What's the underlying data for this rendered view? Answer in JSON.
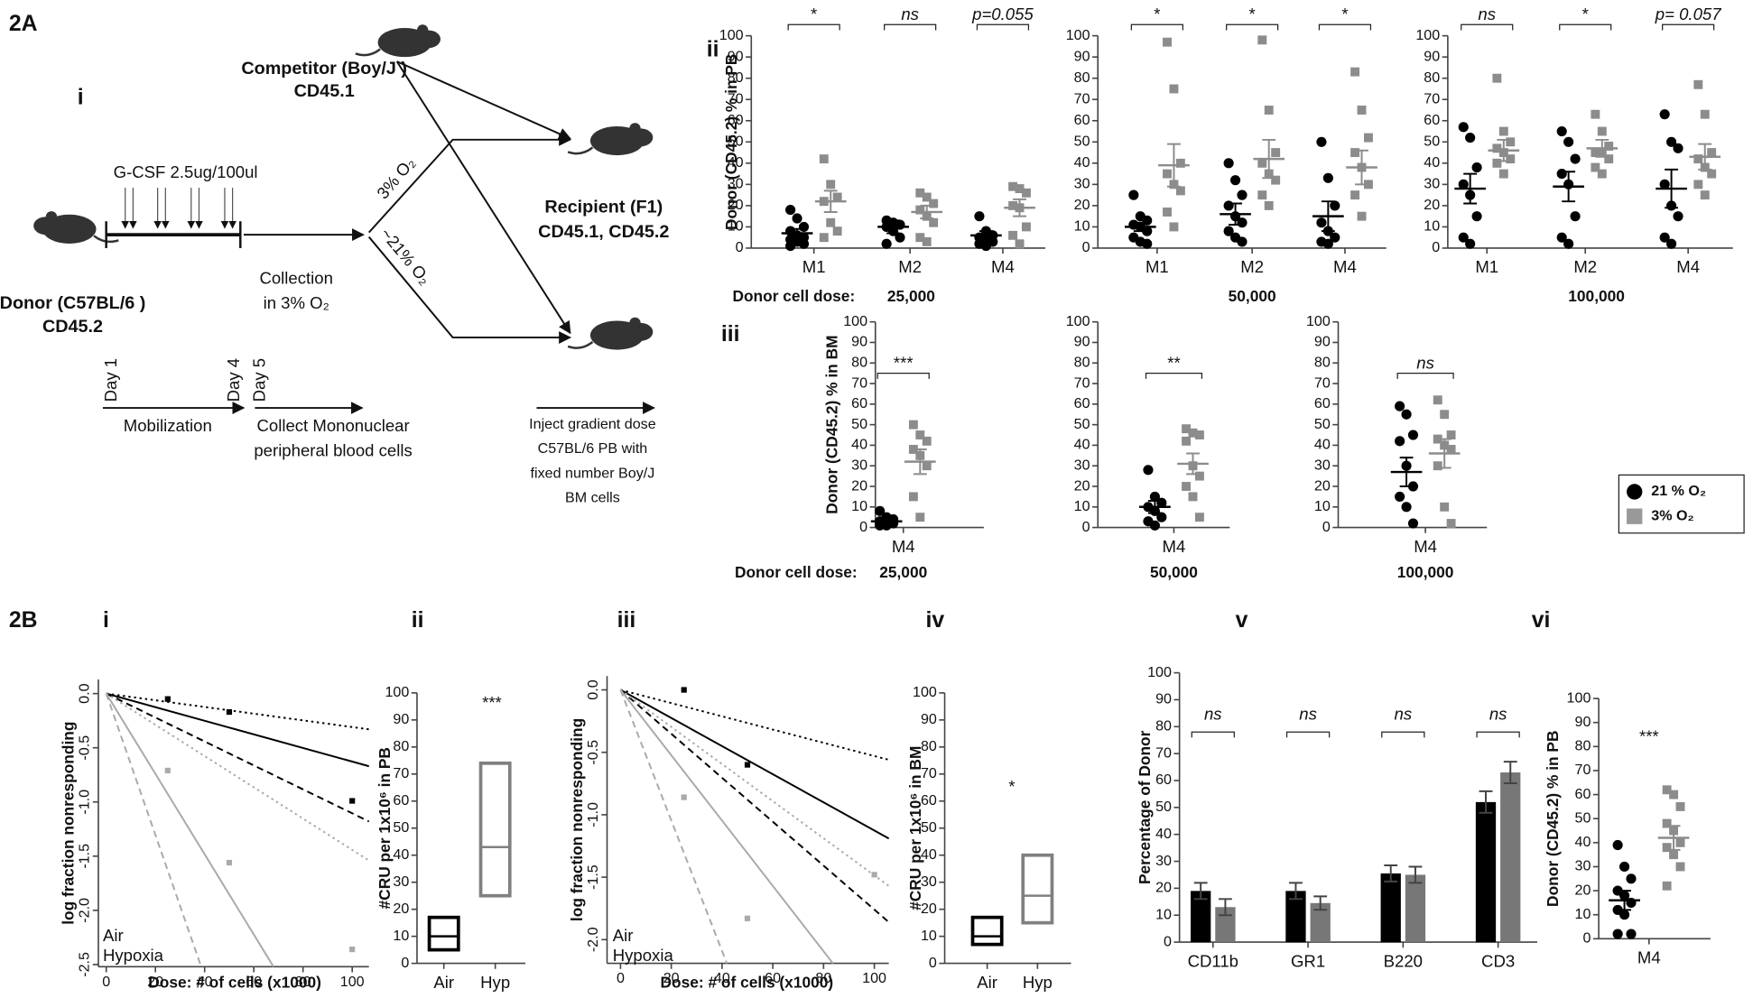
{
  "labels": {
    "a": "2A",
    "b": "2B"
  },
  "diagram": {
    "panel": "i",
    "competitor": [
      "Competitor (Boy/J )",
      "CD45.1"
    ],
    "donor": [
      "Donor (C57BL/6 )",
      "CD45.2"
    ],
    "recipient": [
      "Recipient (F1)",
      "CD45.1, CD45.2"
    ],
    "gcsf": "G-CSF 2.5ug/100ul",
    "collection": [
      "Collection",
      "in 3% O₂"
    ],
    "hypoxia_arm": "3% O₂",
    "air_arm": "~21% O₂",
    "days": [
      "Day 1",
      "Day 4",
      "Day 5"
    ],
    "mobilization": "Mobilization",
    "collect": [
      "Collect  Mononuclear",
      "peripheral blood cells"
    ],
    "inject": [
      "Inject gradient dose",
      "C57BL/6 PB with",
      "fixed number Boy/J",
      "BM cells"
    ]
  },
  "legend": [
    {
      "label": "21 % O₂",
      "color": "#000000",
      "marker": "circle"
    },
    {
      "label": "3% O₂",
      "color": "#999999",
      "marker": "square"
    }
  ],
  "chart_data": [
    {
      "type": "dotplot",
      "panel": "ii",
      "ylabel": "Donor (CD45.2) % in PB",
      "dose_label": "Donor cell dose:",
      "dose": "25,000",
      "categories": [
        "M1",
        "M2",
        "M4"
      ],
      "ylim": [
        0,
        100
      ],
      "yticks": [
        0,
        10,
        20,
        30,
        40,
        50,
        60,
        70,
        80,
        90,
        100
      ],
      "series": [
        {
          "color": "#000000",
          "marker": "circle",
          "values": [
            [
              18,
              14,
              10,
              8,
              6,
              5,
              4,
              3,
              2,
              1
            ],
            [
              13,
              12,
              11,
              10,
              8,
              5,
              2
            ],
            [
              15,
              8,
              6,
              5,
              4,
              3,
              2,
              1
            ]
          ],
          "mean": [
            7,
            10,
            6
          ],
          "sem": [
            2,
            3,
            2
          ]
        },
        {
          "color": "#8c8c8c",
          "marker": "square",
          "values": [
            [
              42,
              30,
              24,
              22,
              12,
              8,
              5
            ],
            [
              26,
              24,
              21,
              18,
              15,
              12,
              5,
              3
            ],
            [
              29,
              28,
              26,
              20,
              19,
              10,
              6,
              2
            ]
          ],
          "mean": [
            22,
            17,
            19
          ],
          "sem": [
            5,
            3,
            4
          ]
        }
      ],
      "annotations": [
        "*",
        "ns",
        "p=0.055"
      ]
    },
    {
      "type": "dotplot",
      "dose": "50,000",
      "categories": [
        "M1",
        "M2",
        "M4"
      ],
      "ylim": [
        0,
        100
      ],
      "yticks": [
        0,
        10,
        20,
        30,
        40,
        50,
        60,
        70,
        80,
        90,
        100
      ],
      "series": [
        {
          "color": "#000000",
          "marker": "circle",
          "values": [
            [
              25,
              15,
              13,
              11,
              10,
              8,
              5,
              3,
              2
            ],
            [
              40,
              32,
              25,
              20,
              15,
              12,
              8,
              5,
              3
            ],
            [
              50,
              33,
              20,
              12,
              8,
              5,
              3,
              2
            ]
          ],
          "mean": [
            10,
            16,
            15
          ],
          "sem": [
            2,
            5,
            7
          ]
        },
        {
          "color": "#8c8c8c",
          "marker": "square",
          "values": [
            [
              97,
              75,
              40,
              35,
              30,
              27,
              17,
              10
            ],
            [
              98,
              65,
              45,
              40,
              35,
              32,
              25,
              20
            ],
            [
              83,
              65,
              52,
              45,
              38,
              30,
              25,
              15
            ]
          ],
          "mean": [
            39,
            42,
            38
          ],
          "sem": [
            10,
            9,
            8
          ]
        }
      ],
      "annotations": [
        "*",
        "*",
        "*"
      ]
    },
    {
      "type": "dotplot",
      "dose": "100,000",
      "categories": [
        "M1",
        "M2",
        "M4"
      ],
      "ylim": [
        0,
        100
      ],
      "yticks": [
        0,
        10,
        20,
        30,
        40,
        50,
        60,
        70,
        80,
        90,
        100
      ],
      "series": [
        {
          "color": "#000000",
          "marker": "circle",
          "values": [
            [
              57,
              52,
              38,
              30,
              25,
              15,
              5,
              2
            ],
            [
              55,
              50,
              42,
              35,
              30,
              15,
              5,
              2
            ],
            [
              63,
              50,
              47,
              30,
              20,
              15,
              5,
              2
            ]
          ],
          "mean": [
            28,
            29,
            28
          ],
          "sem": [
            7,
            7,
            9
          ]
        },
        {
          "color": "#8c8c8c",
          "marker": "square",
          "values": [
            [
              80,
              55,
              50,
              47,
              45,
              42,
              40,
              35
            ],
            [
              63,
              55,
              48,
              45,
              45,
              42,
              38,
              35
            ],
            [
              77,
              63,
              45,
              42,
              38,
              35,
              30,
              25
            ]
          ],
          "mean": [
            46,
            47,
            43
          ],
          "sem": [
            5,
            4,
            6
          ]
        }
      ],
      "annotations": [
        "ns",
        "*",
        "p= 0.057"
      ]
    },
    {
      "type": "dotplot",
      "panel": "iii",
      "ylabel": "Donor (CD45.2) % in BM",
      "dose_label": "Donor cell dose:",
      "dose": "25,000",
      "categories": [
        "M4"
      ],
      "ylim": [
        0,
        100
      ],
      "yticks": [
        0,
        10,
        20,
        30,
        40,
        50,
        60,
        70,
        80,
        90,
        100
      ],
      "series": [
        {
          "color": "#000000",
          "marker": "circle",
          "values": [
            [
              8,
              5,
              4,
              3,
              2,
              2,
              1,
              1
            ]
          ],
          "mean": [
            3
          ],
          "sem": [
            1
          ]
        },
        {
          "color": "#8c8c8c",
          "marker": "square",
          "values": [
            [
              50,
              45,
              42,
              38,
              35,
              30,
              15,
              5
            ]
          ],
          "mean": [
            32
          ],
          "sem": [
            6
          ]
        }
      ],
      "annotations": [
        "***"
      ]
    },
    {
      "type": "dotplot",
      "dose": "50,000",
      "categories": [
        "M4"
      ],
      "ylim": [
        0,
        100
      ],
      "yticks": [
        0,
        10,
        20,
        30,
        40,
        50,
        60,
        70,
        80,
        90,
        100
      ],
      "series": [
        {
          "color": "#000000",
          "marker": "circle",
          "values": [
            [
              28,
              15,
              12,
              10,
              8,
              5,
              3,
              1
            ]
          ],
          "mean": [
            10
          ],
          "sem": [
            3
          ]
        },
        {
          "color": "#8c8c8c",
          "marker": "square",
          "values": [
            [
              48,
              46,
              45,
              42,
              30,
              25,
              20,
              15,
              5
            ]
          ],
          "mean": [
            31
          ],
          "sem": [
            5
          ]
        }
      ],
      "annotations": [
        "**"
      ]
    },
    {
      "type": "dotplot",
      "dose": "100,000",
      "categories": [
        "M4"
      ],
      "ylim": [
        0,
        100
      ],
      "yticks": [
        0,
        10,
        20,
        30,
        40,
        50,
        60,
        70,
        80,
        90,
        100
      ],
      "series": [
        {
          "color": "#000000",
          "marker": "circle",
          "values": [
            [
              59,
              55,
              45,
              42,
              30,
              20,
              15,
              10,
              2
            ]
          ],
          "mean": [
            27
          ],
          "sem": [
            7
          ]
        },
        {
          "color": "#8c8c8c",
          "marker": "square",
          "values": [
            [
              62,
              55,
              45,
              43,
              40,
              38,
              30,
              10,
              2
            ]
          ],
          "mean": [
            36
          ],
          "sem": [
            7
          ]
        }
      ],
      "annotations": [
        "ns"
      ]
    },
    {
      "type": "fit",
      "panel": "i",
      "xlabel": "Dose: # of cells (x1000)",
      "ylabel": "log fraction nonresponding",
      "xlim": [
        -3.2,
        106.8
      ],
      "ylim": [
        -2.52,
        0.13
      ],
      "xticks": [
        0,
        20,
        40,
        60,
        80,
        100
      ],
      "yticks": [
        {
          "value": 0,
          "label": "0.0"
        },
        -0.5,
        {
          "value": -1,
          "label": "-1.0"
        },
        -1.5,
        {
          "value": -2,
          "label": "-2.0"
        },
        -2.5
      ],
      "series": [
        {
          "name": "Air",
          "color": "#000000",
          "x": [
            25,
            50,
            100
          ],
          "values": [
            -0.05,
            -0.17,
            -0.99
          ]
        },
        {
          "name": "Hypoxia",
          "color": "#aaaaaa",
          "x": [
            25,
            50,
            100
          ],
          "values": [
            -0.71,
            -1.56,
            -2.36
          ]
        }
      ],
      "lines": [
        {
          "color": "#000000",
          "dash": "dotted",
          "x": [
            0,
            106.8
          ],
          "values": [
            0,
            -0.33
          ]
        },
        {
          "color": "#000000",
          "dash": "solid",
          "x": [
            0,
            106.8
          ],
          "values": [
            0,
            -0.67
          ]
        },
        {
          "color": "#000000",
          "dash": "dashed",
          "x": [
            0,
            106.8
          ],
          "values": [
            0,
            -1.18
          ]
        },
        {
          "color": "#aaaaaa",
          "dash": "dotted",
          "x": [
            0,
            106.8
          ],
          "values": [
            0,
            -1.54
          ]
        },
        {
          "color": "#aaaaaa",
          "dash": "solid",
          "x": [
            0,
            68
          ],
          "values": [
            0,
            -2.52
          ]
        },
        {
          "color": "#aaaaaa",
          "dash": "dashed",
          "x": [
            0,
            38.6
          ],
          "values": [
            0,
            -2.52
          ]
        }
      ]
    },
    {
      "type": "box",
      "panel": "ii",
      "ylabel": "#CRU per 1x10⁶ in PB",
      "ylim": [
        0,
        100
      ],
      "yticks": [
        0,
        10,
        20,
        30,
        40,
        50,
        60,
        70,
        80,
        90,
        100
      ],
      "categories": [
        "Air",
        "Hyp"
      ],
      "boxes": [
        {
          "color": "#000000",
          "low": 5,
          "mid": 10,
          "high": 17
        },
        {
          "color": "#808080",
          "low": 25,
          "mid": 43,
          "high": 74
        }
      ],
      "annotations": [
        "***"
      ]
    },
    {
      "type": "fit",
      "panel": "iii",
      "xlabel": "Dose: # of cells (x1000)",
      "ylabel": "log fraction nonresponding",
      "xlim": [
        -5.3,
        105.7
      ],
      "ylim": [
        -2.19,
        0.11
      ],
      "xticks": [
        0,
        20,
        40,
        60,
        80,
        100
      ],
      "yticks": [
        {
          "value": 0,
          "label": "0.0"
        },
        -0.5,
        {
          "value": -1,
          "label": "-1.0"
        },
        -1.5,
        {
          "value": -2,
          "label": "-2.0"
        }
      ],
      "series": [
        {
          "name": "Air",
          "color": "#000000",
          "x": [
            25,
            50
          ],
          "values": [
            0,
            -0.6
          ]
        },
        {
          "name": "Hypoxia",
          "color": "#aaaaaa",
          "x": [
            25,
            50,
            100
          ],
          "values": [
            -0.86,
            -1.83,
            -1.48
          ]
        }
      ],
      "lines": [
        {
          "color": "#000000",
          "dash": "dotted",
          "x": [
            0,
            105.7
          ],
          "values": [
            0,
            -0.56
          ]
        },
        {
          "color": "#000000",
          "dash": "solid",
          "x": [
            0,
            105.7
          ],
          "values": [
            0,
            -1.19
          ]
        },
        {
          "color": "#000000",
          "dash": "dashed",
          "x": [
            0,
            105.7
          ],
          "values": [
            0,
            -1.86
          ]
        },
        {
          "color": "#aaaaaa",
          "dash": "dotted",
          "x": [
            0,
            105.7
          ],
          "values": [
            0,
            -1.57
          ]
        },
        {
          "color": "#aaaaaa",
          "dash": "solid",
          "x": [
            0,
            83.7
          ],
          "values": [
            0,
            -2.19
          ]
        },
        {
          "color": "#aaaaaa",
          "dash": "dashed",
          "x": [
            0,
            41.9
          ],
          "values": [
            0,
            -2.19
          ]
        }
      ]
    },
    {
      "type": "box",
      "panel": "iv",
      "ylabel": "#CRU per 1x10⁶ in BM",
      "ylim": [
        0,
        100
      ],
      "yticks": [
        0,
        10,
        20,
        30,
        40,
        50,
        60,
        70,
        80,
        90,
        100
      ],
      "categories": [
        "Air",
        "Hyp"
      ],
      "boxes": [
        {
          "color": "#000000",
          "low": 7,
          "mid": 10,
          "high": 17
        },
        {
          "color": "#808080",
          "low": 15,
          "mid": 25,
          "high": 40
        }
      ],
      "annotations": [
        "*"
      ]
    },
    {
      "type": "bar",
      "panel": "v",
      "ylabel": "Percentage of Donor",
      "categories": [
        "CD11b",
        "GR1",
        "B220",
        "CD3"
      ],
      "ylim": [
        0,
        100
      ],
      "yticks": [
        0,
        10,
        20,
        30,
        40,
        50,
        60,
        70,
        80,
        90,
        100
      ],
      "series": [
        {
          "color": "#000000",
          "values": [
            19,
            19,
            25.5,
            52
          ],
          "errors": [
            3,
            3,
            3,
            4
          ]
        },
        {
          "color": "#777777",
          "values": [
            13,
            14.5,
            25,
            63
          ],
          "errors": [
            3,
            2.5,
            3,
            4
          ]
        }
      ],
      "annotations": [
        "ns",
        "ns",
        "ns",
        "ns"
      ]
    },
    {
      "type": "dotplot",
      "panel": "vi",
      "ylabel": "Donor (CD45.2) % in PB",
      "categories": [
        "M4"
      ],
      "ylim": [
        0,
        100
      ],
      "yticks": [
        0,
        10,
        20,
        30,
        40,
        50,
        60,
        70,
        80,
        90,
        100
      ],
      "series": [
        {
          "color": "#000000",
          "marker": "circle",
          "values": [
            [
              39,
              30,
              25,
              20,
              18,
              15,
              12,
              10,
              2,
              2
            ]
          ],
          "mean": [
            16
          ],
          "sem": [
            4
          ]
        },
        {
          "color": "#8c8c8c",
          "marker": "square",
          "values": [
            [
              62,
              60,
              55,
              48,
              45,
              40,
              38,
              35,
              30,
              22
            ]
          ],
          "mean": [
            42
          ],
          "sem": [
            5
          ]
        }
      ],
      "annotations": [
        "***"
      ]
    }
  ]
}
